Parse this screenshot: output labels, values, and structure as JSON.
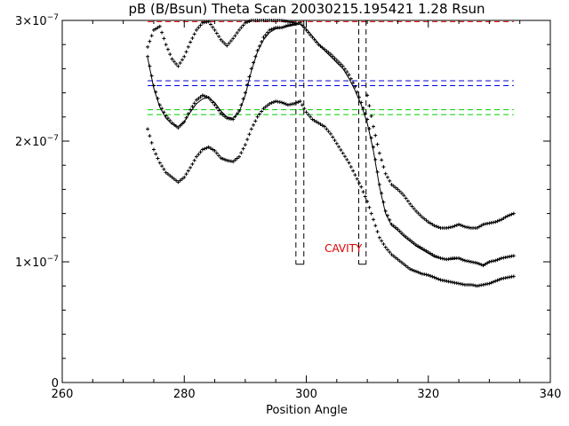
{
  "chart_data": {
    "type": "scatter",
    "title": "pB (B/Bsun) Theta Scan 20030215.195421 1.28 Rsun",
    "xlabel": "Position Angle",
    "ylabel": "",
    "xlim": [
      260,
      340
    ],
    "ylim": [
      0,
      3e-07
    ],
    "grid": false,
    "x_ticks": [
      {
        "v": 260,
        "label": "260"
      },
      {
        "v": 280,
        "label": "280"
      },
      {
        "v": 300,
        "label": "300"
      },
      {
        "v": 320,
        "label": "320"
      },
      {
        "v": 340,
        "label": "340"
      }
    ],
    "y_ticks": [
      {
        "v": 0,
        "label": "0"
      },
      {
        "v": 1e-07,
        "label": "1×10",
        "exp": "−7"
      },
      {
        "v": 2e-07,
        "label": "2×10",
        "exp": "−7"
      },
      {
        "v": 3e-07,
        "label": "3×10",
        "exp": "−7"
      }
    ],
    "annotation": {
      "text": "CAVITY",
      "x": 303,
      "y": 1.08e-07,
      "color": "#dd0000"
    },
    "hlines": [
      {
        "y": 2.99e-07,
        "x0": 274,
        "x1": 334,
        "color": "#dd0000"
      },
      {
        "y": 2.5e-07,
        "x0": 274,
        "x1": 334,
        "color": "#0000dd"
      },
      {
        "y": 2.46e-07,
        "x0": 274,
        "x1": 334,
        "color": "#0000dd"
      },
      {
        "y": 2.26e-07,
        "x0": 274,
        "x1": 334,
        "color": "#00cc00"
      },
      {
        "y": 2.22e-07,
        "x0": 274,
        "x1": 334,
        "color": "#00cc00"
      }
    ],
    "vlines": [
      {
        "x": 298.3,
        "y0": 9.8e-08,
        "y1": 3e-07,
        "color": "#000000"
      },
      {
        "x": 299.6,
        "y0": 9.8e-08,
        "y1": 3e-07,
        "color": "#000000"
      },
      {
        "x": 308.6,
        "y0": 9.8e-08,
        "y1": 3e-07,
        "color": "#000000"
      },
      {
        "x": 309.8,
        "y0": 9.8e-08,
        "y1": 3e-07,
        "color": "#000000"
      }
    ],
    "fit_curve": {
      "x": [
        274,
        275,
        276,
        277,
        278,
        279,
        280,
        281,
        282,
        283,
        284,
        285,
        286,
        287,
        288,
        289,
        290,
        291,
        292,
        293,
        294,
        295,
        296,
        297,
        298,
        299,
        300,
        301,
        302,
        303,
        304,
        305,
        306,
        307,
        308,
        309,
        310,
        311,
        312,
        313,
        314,
        315,
        316,
        317,
        318,
        319,
        320,
        321,
        322,
        323,
        324,
        325,
        326,
        327,
        328,
        329,
        330,
        331,
        332,
        333,
        334
      ],
      "y": [
        2.69e-07,
        2.44e-07,
        2.28e-07,
        2.19e-07,
        2.14e-07,
        2.12e-07,
        2.16e-07,
        2.24e-07,
        2.31e-07,
        2.35e-07,
        2.36e-07,
        2.32e-07,
        2.25e-07,
        2.2e-07,
        2.19e-07,
        2.24e-07,
        2.38e-07,
        2.58e-07,
        2.74e-07,
        2.84e-07,
        2.9e-07,
        2.93e-07,
        2.94e-07,
        2.95e-07,
        2.96e-07,
        2.97e-07,
        2.93e-07,
        2.87e-07,
        2.81e-07,
        2.75e-07,
        2.7e-07,
        2.65e-07,
        2.6e-07,
        2.52e-07,
        2.42e-07,
        2.3e-07,
        2.15e-07,
        1.92e-07,
        1.62e-07,
        1.4e-07,
        1.3e-07,
        1.26e-07,
        1.21e-07,
        1.17e-07,
        1.13e-07,
        1.1e-07,
        1.07e-07,
        1.04e-07,
        1.03e-07,
        1.02e-07,
        1.02e-07,
        1.03e-07,
        1.01e-07,
        1e-07,
        9.9e-08,
        9.7e-08,
        1e-07,
        1.01e-07,
        1.03e-07,
        1.04e-07,
        1.05e-07
      ]
    },
    "upper_points": {
      "x": [
        274,
        275,
        276,
        277,
        278,
        279,
        280,
        281,
        282,
        283,
        284,
        285,
        286,
        287,
        288,
        289,
        290,
        291,
        292,
        293,
        294,
        295,
        296,
        297,
        298,
        310,
        311,
        312,
        313,
        314,
        315,
        316,
        317,
        318,
        319,
        320,
        321,
        322,
        323,
        324,
        325,
        326,
        327,
        328,
        329,
        330,
        331,
        332,
        333,
        334
      ],
      "y": [
        2.78e-07,
        2.92e-07,
        2.95e-07,
        2.8e-07,
        2.68e-07,
        2.62e-07,
        2.7e-07,
        2.82e-07,
        2.92e-07,
        2.98e-07,
        2.99e-07,
        2.92e-07,
        2.84e-07,
        2.79e-07,
        2.85e-07,
        2.92e-07,
        2.98e-07,
        3e-07,
        3e-07,
        3e-07,
        3e-07,
        3e-07,
        3e-07,
        2.99e-07,
        2.98e-07,
        2.38e-07,
        2.12e-07,
        1.9e-07,
        1.73e-07,
        1.64e-07,
        1.6e-07,
        1.55e-07,
        1.48e-07,
        1.42e-07,
        1.37e-07,
        1.33e-07,
        1.3e-07,
        1.28e-07,
        1.28e-07,
        1.29e-07,
        1.31e-07,
        1.29e-07,
        1.28e-07,
        1.28e-07,
        1.31e-07,
        1.32e-07,
        1.33e-07,
        1.35e-07,
        1.38e-07,
        1.4e-07
      ]
    },
    "data_points": {
      "x": [
        274,
        275,
        276,
        277,
        278,
        279,
        280,
        281,
        282,
        283,
        284,
        285,
        286,
        287,
        288,
        289,
        290,
        291,
        292,
        293,
        294,
        295,
        296,
        297,
        298,
        299,
        300,
        301,
        302,
        303,
        304,
        305,
        306,
        307,
        308,
        309,
        310,
        311,
        312,
        313,
        314,
        315,
        316,
        317,
        318,
        319,
        320,
        321,
        322,
        323,
        324,
        325,
        326,
        327,
        328,
        329,
        330,
        331,
        332,
        333,
        334
      ],
      "y": [
        2.7e-07,
        2.46e-07,
        2.3e-07,
        2.21e-07,
        2.15e-07,
        2.11e-07,
        2.16e-07,
        2.26e-07,
        2.34e-07,
        2.38e-07,
        2.36e-07,
        2.3e-07,
        2.23e-07,
        2.19e-07,
        2.18e-07,
        2.25e-07,
        2.4e-07,
        2.6e-07,
        2.75e-07,
        2.86e-07,
        2.92e-07,
        2.94e-07,
        2.94e-07,
        2.96e-07,
        2.97e-07,
        2.98e-07,
        2.92e-07,
        2.86e-07,
        2.8e-07,
        2.76e-07,
        2.72e-07,
        2.67e-07,
        2.62e-07,
        2.55e-07,
        2.45e-07,
        2.32e-07,
        2.18e-07,
        1.95e-07,
        1.64e-07,
        1.42e-07,
        1.31e-07,
        1.27e-07,
        1.22e-07,
        1.18e-07,
        1.14e-07,
        1.11e-07,
        1.08e-07,
        1.05e-07,
        1.03e-07,
        1.02e-07,
        1.03e-07,
        1.03e-07,
        1.01e-07,
        1e-07,
        9.9e-08,
        9.7e-08,
        1e-07,
        1.01e-07,
        1.03e-07,
        1.04e-07,
        1.05e-07
      ]
    },
    "lower_points": {
      "x": [
        274,
        275,
        276,
        277,
        278,
        279,
        280,
        281,
        282,
        283,
        284,
        285,
        286,
        287,
        288,
        289,
        290,
        291,
        292,
        293,
        294,
        295,
        296,
        297,
        298,
        299,
        300,
        301,
        302,
        303,
        304,
        305,
        306,
        307,
        308,
        309,
        310,
        311,
        312,
        313,
        314,
        315,
        316,
        317,
        318,
        319,
        320,
        321,
        322,
        323,
        324,
        325,
        326,
        327,
        328,
        329,
        330,
        331,
        332,
        333,
        334
      ],
      "y": [
        2.1e-07,
        1.93e-07,
        1.82e-07,
        1.74e-07,
        1.7e-07,
        1.66e-07,
        1.7e-07,
        1.78e-07,
        1.87e-07,
        1.93e-07,
        1.95e-07,
        1.92e-07,
        1.86e-07,
        1.84e-07,
        1.83e-07,
        1.87e-07,
        1.97e-07,
        2.1e-07,
        2.2e-07,
        2.27e-07,
        2.31e-07,
        2.33e-07,
        2.32e-07,
        2.3e-07,
        2.31e-07,
        2.33e-07,
        2.24e-07,
        2.18e-07,
        2.15e-07,
        2.12e-07,
        2.06e-07,
        1.98e-07,
        1.9e-07,
        1.82e-07,
        1.72e-07,
        1.62e-07,
        1.5e-07,
        1.35e-07,
        1.2e-07,
        1.12e-07,
        1.06e-07,
        1.02e-07,
        9.8e-08,
        9.4e-08,
        9.2e-08,
        9e-08,
        8.9e-08,
        8.7e-08,
        8.5e-08,
        8.4e-08,
        8.3e-08,
        8.2e-08,
        8.1e-08,
        8.1e-08,
        8e-08,
        8.1e-08,
        8.2e-08,
        8.4e-08,
        8.6e-08,
        8.7e-08,
        8.8e-08
      ]
    }
  }
}
